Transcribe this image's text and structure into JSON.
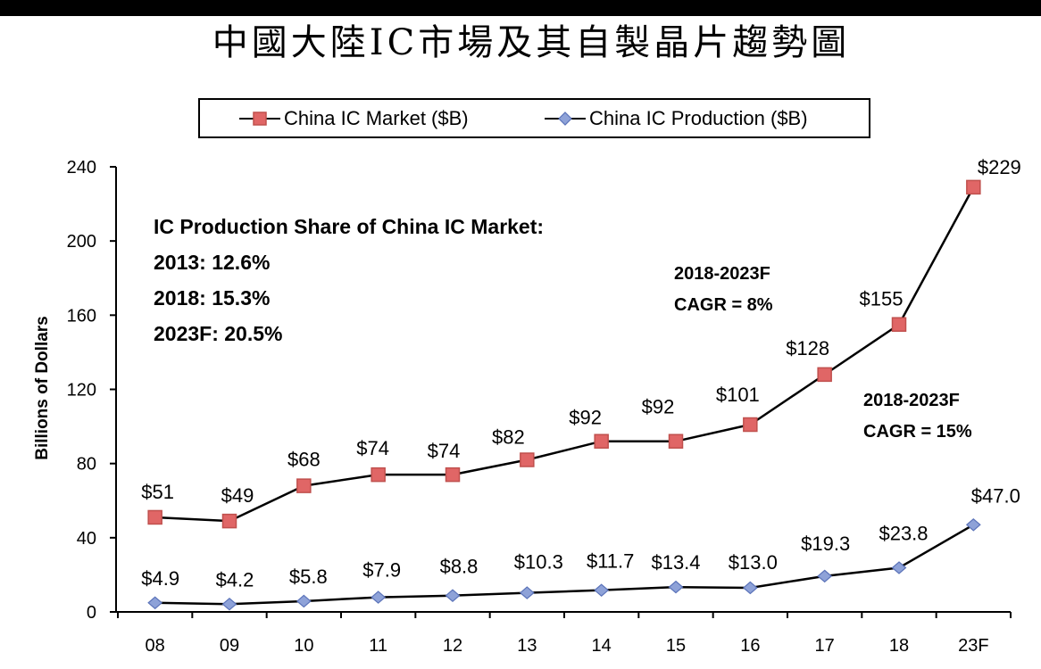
{
  "chart_data": {
    "type": "line",
    "title": "中國大陸IC市場及其自製晶片趨勢圖",
    "xlabel": "",
    "ylabel": "Billions of Dollars",
    "categories": [
      "08",
      "09",
      "10",
      "11",
      "12",
      "13",
      "14",
      "15",
      "16",
      "17",
      "18",
      "23F"
    ],
    "ylim": [
      0,
      240
    ],
    "yticks": [
      0,
      40,
      80,
      120,
      160,
      200,
      240
    ],
    "grid": false,
    "legend_position": "top",
    "line_color": "#000000",
    "series": [
      {
        "name": "China IC Market ($B)",
        "marker": "square",
        "marker_color": "#e06666",
        "marker_edge": "#c0504d",
        "values": [
          51,
          49,
          68,
          74,
          74,
          82,
          92,
          92,
          101,
          128,
          155,
          229
        ],
        "labels": [
          "$51",
          "$49",
          "$68",
          "$74",
          "$74",
          "$82",
          "$92",
          "$92",
          "$101",
          "$128",
          "$155",
          "$229"
        ]
      },
      {
        "name": "China IC Production ($B)",
        "marker": "diamond",
        "marker_color": "#8ea2d8",
        "marker_edge": "#5b73b9",
        "values": [
          4.9,
          4.2,
          5.8,
          7.9,
          8.8,
          10.3,
          11.7,
          13.4,
          13.0,
          19.3,
          23.8,
          47.0
        ],
        "labels": [
          "$4.9",
          "$4.2",
          "$5.8",
          "$7.9",
          "$8.8",
          "$10.3",
          "$11.7",
          "$13.4",
          "$13.0",
          "$19.3",
          "$23.8",
          "$47.0"
        ]
      }
    ],
    "annotations": [
      {
        "lines": [
          "IC Production Share of China IC Market:",
          "2013: 12.6%",
          "2018: 15.3%",
          "2023F: 20.5%"
        ]
      },
      {
        "lines": [
          "2018-2023F",
          "CAGR = 8%"
        ]
      },
      {
        "lines": [
          "2018-2023F",
          "CAGR = 15%"
        ]
      }
    ]
  }
}
